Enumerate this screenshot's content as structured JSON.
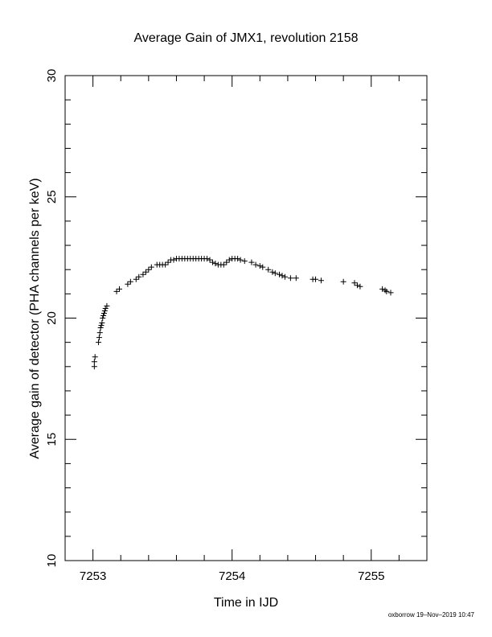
{
  "chart_data": {
    "type": "scatter",
    "title": "Average Gain of JMX1, revolution 2158",
    "xlabel": "Time in IJD",
    "ylabel": "Average gain of detector (PHA channels per keV)",
    "xlim": [
      7252.8,
      7255.4
    ],
    "ylim": [
      10,
      30
    ],
    "x_ticks": [
      7253,
      7254,
      7255
    ],
    "x_tick_labels": [
      "7253",
      "7254",
      "7255"
    ],
    "y_ticks": [
      10,
      15,
      20,
      25,
      30
    ],
    "y_tick_labels": [
      "10",
      "15",
      "20",
      "25",
      "30"
    ],
    "grid": false,
    "legend": "none",
    "marker": "plus",
    "color": "#000000",
    "series": [
      {
        "x": [
          7253.01,
          7253.01,
          7253.015,
          7253.04,
          7253.045,
          7253.05,
          7253.055,
          7253.06,
          7253.065,
          7253.07,
          7253.075,
          7253.08,
          7253.085,
          7253.09,
          7253.1,
          7253.17,
          7253.19,
          7253.25,
          7253.27,
          7253.31,
          7253.33,
          7253.36,
          7253.38,
          7253.4,
          7253.42,
          7253.46,
          7253.48,
          7253.5,
          7253.52,
          7253.54,
          7253.56,
          7253.58,
          7253.6,
          7253.62,
          7253.64,
          7253.66,
          7253.68,
          7253.7,
          7253.72,
          7253.74,
          7253.76,
          7253.78,
          7253.8,
          7253.82,
          7253.84,
          7253.86,
          7253.88,
          7253.9,
          7253.92,
          7253.94,
          7253.96,
          7253.98,
          7254.0,
          7254.02,
          7254.04,
          7254.06,
          7254.09,
          7254.14,
          7254.17,
          7254.2,
          7254.22,
          7254.26,
          7254.29,
          7254.31,
          7254.34,
          7254.36,
          7254.38,
          7254.42,
          7254.46,
          7254.58,
          7254.6,
          7254.64,
          7254.8,
          7254.88,
          7254.9,
          7254.92,
          7255.08,
          7255.1,
          7255.11,
          7255.14
        ],
        "y": [
          18.0,
          18.2,
          18.4,
          19.0,
          19.2,
          19.4,
          19.6,
          19.7,
          19.8,
          20.0,
          20.1,
          20.2,
          20.3,
          20.4,
          20.5,
          21.1,
          21.2,
          21.4,
          21.5,
          21.6,
          21.7,
          21.8,
          21.9,
          22.0,
          22.1,
          22.2,
          22.2,
          22.2,
          22.2,
          22.3,
          22.4,
          22.4,
          22.45,
          22.45,
          22.45,
          22.45,
          22.45,
          22.45,
          22.45,
          22.45,
          22.45,
          22.45,
          22.45,
          22.45,
          22.4,
          22.3,
          22.25,
          22.2,
          22.2,
          22.2,
          22.3,
          22.4,
          22.45,
          22.45,
          22.45,
          22.4,
          22.35,
          22.3,
          22.2,
          22.15,
          22.1,
          22.0,
          21.9,
          21.85,
          21.8,
          21.75,
          21.7,
          21.65,
          21.65,
          21.6,
          21.6,
          21.55,
          21.5,
          21.45,
          21.35,
          21.3,
          21.2,
          21.15,
          21.1,
          21.05
        ]
      }
    ]
  },
  "footer": {
    "credit": "oxborrow 19–Nov–2019 10:47"
  }
}
